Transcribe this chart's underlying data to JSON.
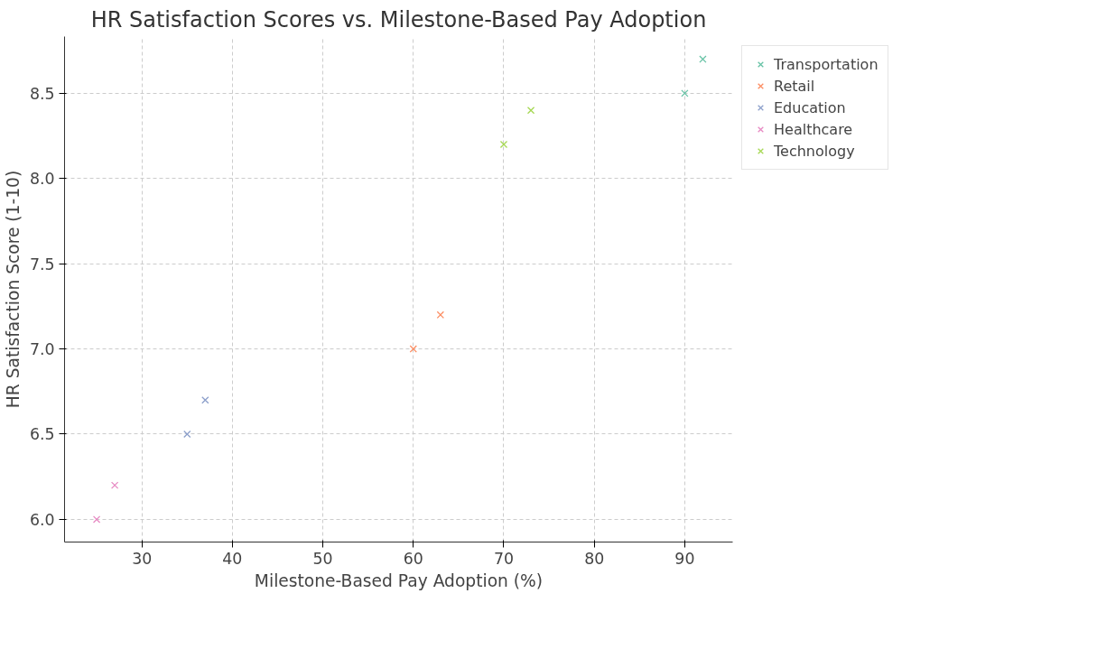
{
  "chart_data": {
    "type": "scatter",
    "title": "HR Satisfaction Scores vs. Milestone-Based Pay Adoption",
    "xlabel": "Milestone-Based Pay Adoption (%)",
    "ylabel": "HR Satisfaction Score (1-10)",
    "series": [
      {
        "name": "Transportation",
        "color": "#66c2a5",
        "x": [
          90,
          92
        ],
        "values": [
          8.5,
          8.7
        ]
      },
      {
        "name": "Retail",
        "color": "#fc8d62",
        "x": [
          60,
          63
        ],
        "values": [
          7.0,
          7.2
        ]
      },
      {
        "name": "Education",
        "color": "#8da0cb",
        "x": [
          35,
          37
        ],
        "values": [
          6.5,
          6.7
        ]
      },
      {
        "name": "Healthcare",
        "color": "#e78ac3",
        "x": [
          25,
          27
        ],
        "values": [
          6.0,
          6.2
        ]
      },
      {
        "name": "Technology",
        "color": "#a6d854",
        "x": [
          70,
          73
        ],
        "values": [
          8.2,
          8.4
        ]
      }
    ],
    "xlim": [
      21.45,
      95.3
    ],
    "ylim": [
      5.867,
      8.833
    ],
    "xticks": [
      30,
      40,
      50,
      60,
      70,
      80,
      90
    ],
    "yticks": [
      {
        "value": 6,
        "label": "6.0"
      },
      6.5,
      {
        "value": 7,
        "label": "7.0"
      },
      7.5,
      {
        "value": 8,
        "label": "8.0"
      },
      8.5
    ],
    "grid": true,
    "legend": "top right",
    "marker": "cross"
  }
}
